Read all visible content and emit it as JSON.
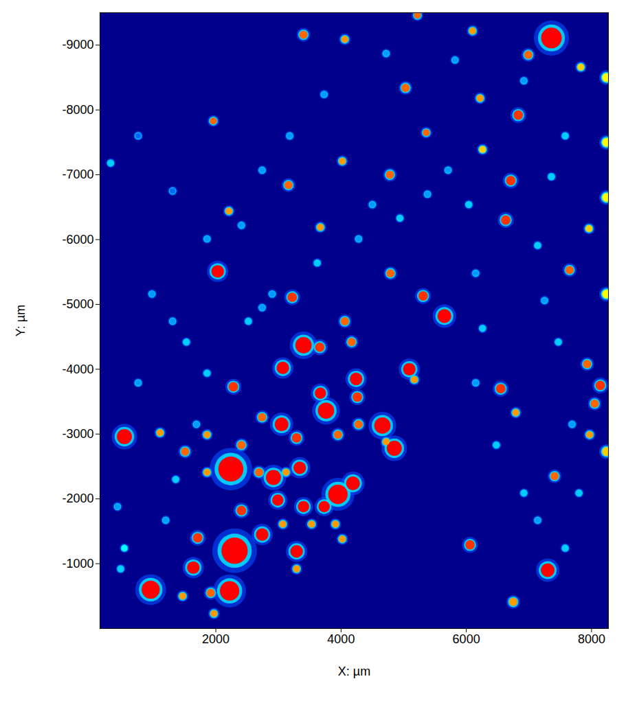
{
  "chart_data": {
    "type": "heatmap_spots",
    "x_label": "X: µm",
    "y_label": "Y: µm",
    "xlim": [
      150,
      8270
    ],
    "ylim": [
      0,
      -9500
    ],
    "xticks": [
      2000,
      4000,
      6000,
      8000
    ],
    "yticks": [
      -9000,
      -8000,
      -7000,
      -6000,
      -5000,
      -4000,
      -3000,
      -2000,
      -1000
    ],
    "zlim": [
      0,
      100
    ],
    "points": [
      {
        "x": 7360,
        "y": -9110,
        "value": 100,
        "size": 165
      },
      {
        "x": 960,
        "y": -600,
        "value": 100,
        "size": 145
      },
      {
        "x": 2240,
        "y": -2460,
        "value": 100,
        "size": 200
      },
      {
        "x": 2300,
        "y": -1200,
        "value": 100,
        "size": 210
      },
      {
        "x": 2220,
        "y": -580,
        "value": 100,
        "size": 155
      },
      {
        "x": 3950,
        "y": -2070,
        "value": 100,
        "size": 155
      },
      {
        "x": 4190,
        "y": -2240,
        "value": 100,
        "size": 110
      },
      {
        "x": 2920,
        "y": -2330,
        "value": 100,
        "size": 120
      },
      {
        "x": 3400,
        "y": -4370,
        "value": 100,
        "size": 130
      },
      {
        "x": 3760,
        "y": -3360,
        "value": 100,
        "size": 130
      },
      {
        "x": 4660,
        "y": -3130,
        "value": 100,
        "size": 130
      },
      {
        "x": 4850,
        "y": -2780,
        "value": 100,
        "size": 120
      },
      {
        "x": 5090,
        "y": -4000,
        "value": 100,
        "size": 100
      },
      {
        "x": 5650,
        "y": -4820,
        "value": 100,
        "size": 110
      },
      {
        "x": 2030,
        "y": -5510,
        "value": 100,
        "size": 100
      },
      {
        "x": 540,
        "y": -2960,
        "value": 100,
        "size": 120
      },
      {
        "x": 3050,
        "y": -3150,
        "value": 100,
        "size": 110
      },
      {
        "x": 3340,
        "y": -2480,
        "value": 100,
        "size": 100
      },
      {
        "x": 3400,
        "y": -1880,
        "value": 100,
        "size": 90
      },
      {
        "x": 2990,
        "y": -1980,
        "value": 100,
        "size": 90
      },
      {
        "x": 3730,
        "y": -1880,
        "value": 100,
        "size": 90
      },
      {
        "x": 2410,
        "y": -1820,
        "value": 95,
        "size": 75
      },
      {
        "x": 1640,
        "y": -940,
        "value": 100,
        "size": 100
      },
      {
        "x": 2740,
        "y": -1450,
        "value": 100,
        "size": 100
      },
      {
        "x": 3290,
        "y": -1190,
        "value": 100,
        "size": 100
      },
      {
        "x": 1710,
        "y": -1400,
        "value": 95,
        "size": 75
      },
      {
        "x": 3670,
        "y": -3630,
        "value": 100,
        "size": 90
      },
      {
        "x": 4240,
        "y": -3850,
        "value": 100,
        "size": 100
      },
      {
        "x": 4260,
        "y": -3570,
        "value": 95,
        "size": 75
      },
      {
        "x": 3070,
        "y": -4020,
        "value": 100,
        "size": 100
      },
      {
        "x": 3660,
        "y": -4340,
        "value": 95,
        "size": 75
      },
      {
        "x": 3290,
        "y": -2940,
        "value": 95,
        "size": 75
      },
      {
        "x": 2740,
        "y": -3260,
        "value": 90,
        "size": 65
      },
      {
        "x": 3950,
        "y": -2990,
        "value": 90,
        "size": 65
      },
      {
        "x": 2280,
        "y": -3730,
        "value": 95,
        "size": 75
      },
      {
        "x": 2410,
        "y": -2830,
        "value": 90,
        "size": 65
      },
      {
        "x": 3220,
        "y": -5110,
        "value": 95,
        "size": 75
      },
      {
        "x": 5310,
        "y": -5130,
        "value": 95,
        "size": 75
      },
      {
        "x": 7300,
        "y": -900,
        "value": 100,
        "size": 110
      },
      {
        "x": 6060,
        "y": -1290,
        "value": 95,
        "size": 75
      },
      {
        "x": 6710,
        "y": -6910,
        "value": 95,
        "size": 75
      },
      {
        "x": 6630,
        "y": -6300,
        "value": 95,
        "size": 75
      },
      {
        "x": 6550,
        "y": -3700,
        "value": 95,
        "size": 75
      },
      {
        "x": 6830,
        "y": -7920,
        "value": 95,
        "size": 75
      },
      {
        "x": 5030,
        "y": -8340,
        "value": 90,
        "size": 65
      },
      {
        "x": 5360,
        "y": -7650,
        "value": 90,
        "size": 55
      },
      {
        "x": 3400,
        "y": -9160,
        "value": 90,
        "size": 65
      },
      {
        "x": 5220,
        "y": -9460,
        "value": 90,
        "size": 55
      },
      {
        "x": 4060,
        "y": -9090,
        "value": 85,
        "size": 55
      },
      {
        "x": 1960,
        "y": -7830,
        "value": 90,
        "size": 55
      },
      {
        "x": 4780,
        "y": -7000,
        "value": 90,
        "size": 65
      },
      {
        "x": 4020,
        "y": -7210,
        "value": 85,
        "size": 55
      },
      {
        "x": 3160,
        "y": -6840,
        "value": 90,
        "size": 65
      },
      {
        "x": 3670,
        "y": -6190,
        "value": 85,
        "size": 55
      },
      {
        "x": 2210,
        "y": -6440,
        "value": 85,
        "size": 55
      },
      {
        "x": 6220,
        "y": -8180,
        "value": 85,
        "size": 55
      },
      {
        "x": 6100,
        "y": -9220,
        "value": 85,
        "size": 55
      },
      {
        "x": 6990,
        "y": -8850,
        "value": 90,
        "size": 65
      },
      {
        "x": 8140,
        "y": -3750,
        "value": 95,
        "size": 75
      },
      {
        "x": 8050,
        "y": -3470,
        "value": 90,
        "size": 65
      },
      {
        "x": 7650,
        "y": -5530,
        "value": 90,
        "size": 65
      },
      {
        "x": 7930,
        "y": -4080,
        "value": 90,
        "size": 65
      },
      {
        "x": 6790,
        "y": -3330,
        "value": 85,
        "size": 55
      },
      {
        "x": 7410,
        "y": -2350,
        "value": 90,
        "size": 65
      },
      {
        "x": 7970,
        "y": -2990,
        "value": 85,
        "size": 55
      },
      {
        "x": 6750,
        "y": -410,
        "value": 85,
        "size": 65
      },
      {
        "x": 4790,
        "y": -5480,
        "value": 90,
        "size": 65
      },
      {
        "x": 4170,
        "y": -4420,
        "value": 90,
        "size": 65
      },
      {
        "x": 4060,
        "y": -4740,
        "value": 90,
        "size": 65
      },
      {
        "x": 1510,
        "y": -2730,
        "value": 90,
        "size": 65
      },
      {
        "x": 1860,
        "y": -2410,
        "value": 85,
        "size": 55
      },
      {
        "x": 1860,
        "y": -2990,
        "value": 85,
        "size": 55
      },
      {
        "x": 1110,
        "y": -3020,
        "value": 85,
        "size": 55
      },
      {
        "x": 1920,
        "y": -550,
        "value": 90,
        "size": 65
      },
      {
        "x": 1470,
        "y": -500,
        "value": 85,
        "size": 55
      },
      {
        "x": 1970,
        "y": -230,
        "value": 85,
        "size": 55
      },
      {
        "x": 2690,
        "y": -2410,
        "value": 90,
        "size": 65
      },
      {
        "x": 3120,
        "y": -2410,
        "value": 85,
        "size": 55
      },
      {
        "x": 5170,
        "y": -3840,
        "value": 85,
        "size": 55
      },
      {
        "x": 4280,
        "y": -3150,
        "value": 90,
        "size": 65
      },
      {
        "x": 4720,
        "y": -2880,
        "value": 85,
        "size": 55
      },
      {
        "x": 3910,
        "y": -1610,
        "value": 85,
        "size": 55
      },
      {
        "x": 4020,
        "y": -1380,
        "value": 85,
        "size": 55
      },
      {
        "x": 3530,
        "y": -1610,
        "value": 85,
        "size": 55
      },
      {
        "x": 3290,
        "y": -920,
        "value": 85,
        "size": 55
      },
      {
        "x": 3070,
        "y": -1610,
        "value": 85,
        "size": 55
      },
      {
        "x": 7960,
        "y": -6170,
        "value": 80,
        "size": 55
      },
      {
        "x": 7830,
        "y": -8660,
        "value": 80,
        "size": 55
      },
      {
        "x": 6260,
        "y": -7390,
        "value": 80,
        "size": 55
      },
      {
        "x": 8240,
        "y": -8500,
        "value": 75,
        "size": 70
      },
      {
        "x": 8240,
        "y": -7500,
        "value": 75,
        "size": 70
      },
      {
        "x": 8240,
        "y": -6650,
        "value": 75,
        "size": 70
      },
      {
        "x": 8240,
        "y": -5160,
        "value": 75,
        "size": 70
      },
      {
        "x": 8240,
        "y": -2730,
        "value": 80,
        "size": 70
      },
      {
        "x": 1860,
        "y": -3940,
        "value": 45,
        "size": 45
      },
      {
        "x": 1690,
        "y": -3150,
        "value": 40,
        "size": 45
      },
      {
        "x": 1360,
        "y": -2300,
        "value": 45,
        "size": 45
      },
      {
        "x": 1200,
        "y": -1670,
        "value": 40,
        "size": 45
      },
      {
        "x": 540,
        "y": -1240,
        "value": 50,
        "size": 45
      },
      {
        "x": 480,
        "y": -920,
        "value": 45,
        "size": 45
      },
      {
        "x": 430,
        "y": -1880,
        "value": 40,
        "size": 45
      },
      {
        "x": 760,
        "y": -3790,
        "value": 40,
        "size": 45
      },
      {
        "x": 980,
        "y": -5160,
        "value": 40,
        "size": 45
      },
      {
        "x": 1310,
        "y": -4740,
        "value": 40,
        "size": 45
      },
      {
        "x": 1530,
        "y": -4420,
        "value": 45,
        "size": 45
      },
      {
        "x": 2520,
        "y": -4740,
        "value": 45,
        "size": 45
      },
      {
        "x": 2740,
        "y": -4950,
        "value": 40,
        "size": 45
      },
      {
        "x": 2900,
        "y": -5160,
        "value": 40,
        "size": 45
      },
      {
        "x": 3620,
        "y": -5640,
        "value": 45,
        "size": 45
      },
      {
        "x": 4280,
        "y": -6010,
        "value": 40,
        "size": 45
      },
      {
        "x": 4500,
        "y": -6540,
        "value": 40,
        "size": 45
      },
      {
        "x": 4940,
        "y": -6330,
        "value": 45,
        "size": 45
      },
      {
        "x": 5380,
        "y": -6700,
        "value": 40,
        "size": 45
      },
      {
        "x": 5710,
        "y": -7070,
        "value": 40,
        "size": 45
      },
      {
        "x": 6040,
        "y": -6540,
        "value": 45,
        "size": 45
      },
      {
        "x": 6150,
        "y": -5480,
        "value": 40,
        "size": 45
      },
      {
        "x": 6260,
        "y": -4630,
        "value": 45,
        "size": 45
      },
      {
        "x": 6150,
        "y": -3790,
        "value": 40,
        "size": 45
      },
      {
        "x": 6480,
        "y": -2830,
        "value": 45,
        "size": 45
      },
      {
        "x": 6920,
        "y": -2090,
        "value": 45,
        "size": 45
      },
      {
        "x": 7140,
        "y": -1670,
        "value": 40,
        "size": 45
      },
      {
        "x": 7580,
        "y": -1240,
        "value": 45,
        "size": 45
      },
      {
        "x": 7800,
        "y": -2090,
        "value": 45,
        "size": 45
      },
      {
        "x": 7690,
        "y": -3150,
        "value": 40,
        "size": 45
      },
      {
        "x": 7470,
        "y": -4420,
        "value": 45,
        "size": 45
      },
      {
        "x": 7250,
        "y": -5060,
        "value": 40,
        "size": 45
      },
      {
        "x": 7140,
        "y": -5910,
        "value": 45,
        "size": 45
      },
      {
        "x": 7360,
        "y": -6970,
        "value": 45,
        "size": 45
      },
      {
        "x": 7580,
        "y": -7600,
        "value": 45,
        "size": 45
      },
      {
        "x": 6920,
        "y": -8450,
        "value": 40,
        "size": 45
      },
      {
        "x": 5820,
        "y": -8770,
        "value": 40,
        "size": 45
      },
      {
        "x": 4720,
        "y": -8870,
        "value": 40,
        "size": 45
      },
      {
        "x": 3730,
        "y": -8240,
        "value": 40,
        "size": 45
      },
      {
        "x": 3180,
        "y": -7600,
        "value": 40,
        "size": 45
      },
      {
        "x": 2740,
        "y": -7070,
        "value": 40,
        "size": 45
      },
      {
        "x": 2410,
        "y": -6220,
        "value": 40,
        "size": 45
      },
      {
        "x": 1860,
        "y": -6010,
        "value": 40,
        "size": 45
      },
      {
        "x": 1310,
        "y": -6750,
        "value": 35,
        "size": 45
      },
      {
        "x": 760,
        "y": -7600,
        "value": 35,
        "size": 45
      },
      {
        "x": 320,
        "y": -7180,
        "value": 45,
        "size": 45
      }
    ]
  }
}
